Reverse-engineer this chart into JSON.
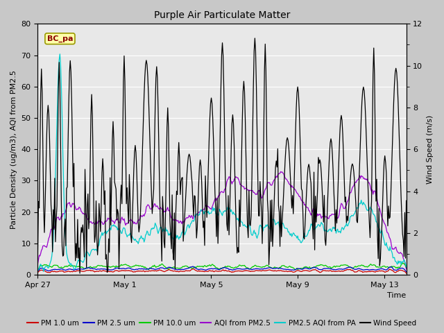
{
  "title": "Purple Air Particulate Matter",
  "ylabel_left": "Particle Density (ug/m3), AQI from PM2.5",
  "ylabel_right": "Wind Speed (m/s)",
  "xlabel": "Time",
  "ylim_left": [
    0,
    80
  ],
  "ylim_right": [
    0,
    12
  ],
  "yticks_left": [
    0,
    10,
    20,
    30,
    40,
    50,
    60,
    70,
    80
  ],
  "yticks_right": [
    0,
    2,
    4,
    6,
    8,
    10,
    12
  ],
  "xtick_labels": [
    "Apr 27",
    "May 1",
    "May 5",
    "May 9",
    "May 13"
  ],
  "xtick_positions": [
    0,
    4,
    8,
    12,
    16
  ],
  "xlim": [
    0,
    17
  ],
  "annotation_text": "BC_pa",
  "fig_bg_color": "#c8c8c8",
  "plot_bg_color": "#e8e8e8",
  "grid_color": "#ffffff",
  "legend_entries": [
    {
      "label": "PM 1.0 um",
      "color": "#cc0000"
    },
    {
      "label": "PM 2.5 um",
      "color": "#0000cc"
    },
    {
      "label": "PM 10.0 um",
      "color": "#00cc00"
    },
    {
      "label": "AQI from PM2.5",
      "color": "#9900cc"
    },
    {
      "label": "PM2.5 AQI from PA",
      "color": "#00cccc"
    },
    {
      "label": "Wind Speed",
      "color": "#000000"
    }
  ],
  "title_fontsize": 10,
  "axis_fontsize": 8,
  "tick_fontsize": 8,
  "legend_fontsize": 7.5,
  "seed": 42,
  "n_points": 500
}
